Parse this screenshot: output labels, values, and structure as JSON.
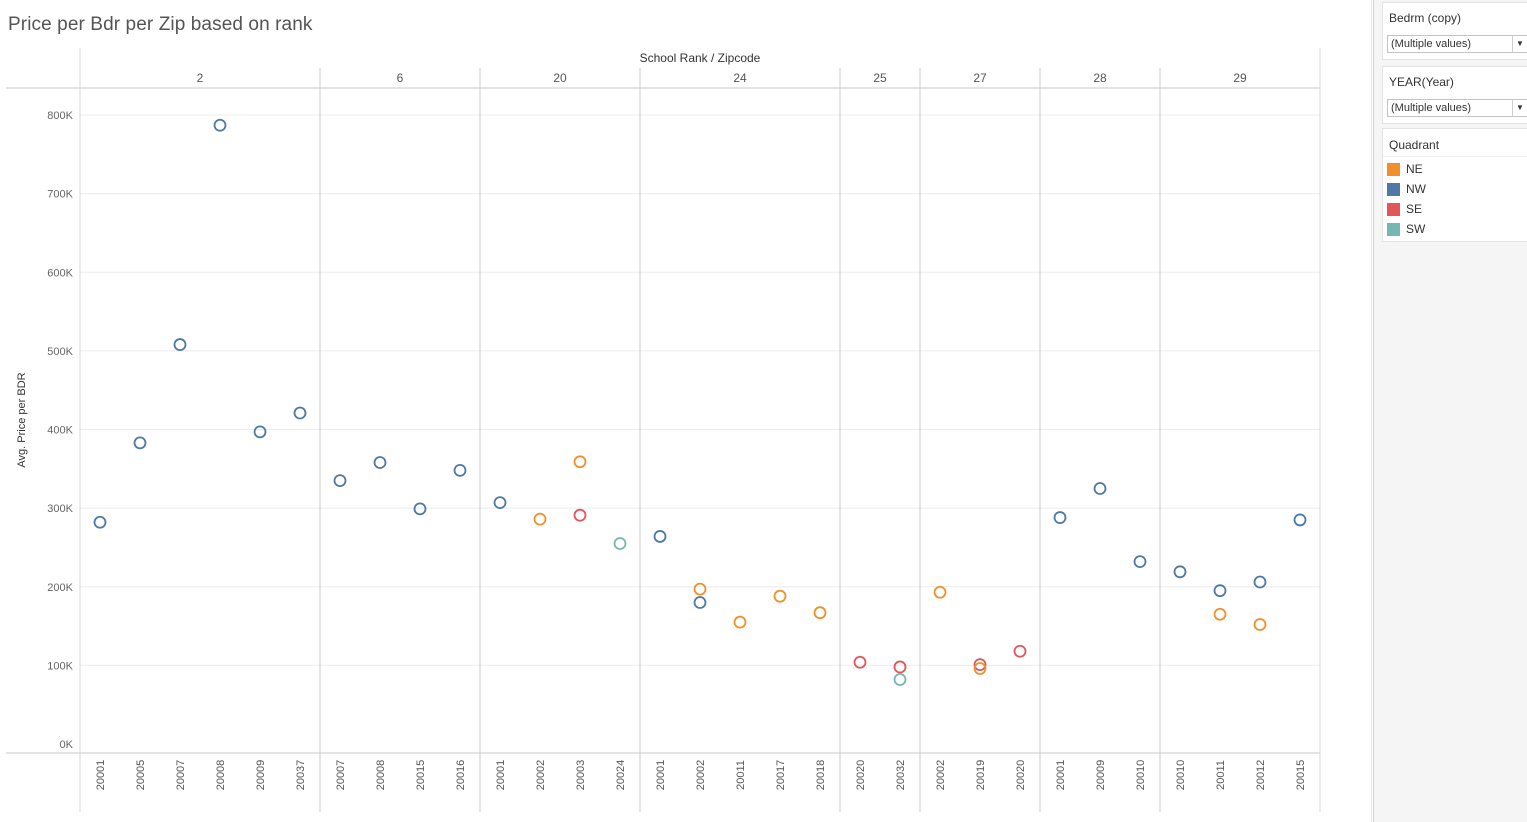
{
  "title": "Price per Bdr per Zip based on rank",
  "filters": [
    {
      "label": "Bedrm (copy)",
      "value": "(Multiple values)"
    },
    {
      "label": "YEAR(Year)",
      "value": "(Multiple values)"
    }
  ],
  "legend": {
    "title": "Quadrant",
    "items": [
      {
        "name": "NE",
        "color": "#f28e2b"
      },
      {
        "name": "NW",
        "color": "#4e79a7"
      },
      {
        "name": "SE",
        "color": "#e15759"
      },
      {
        "name": "SW",
        "color": "#76b7b2"
      }
    ]
  },
  "chart_data": {
    "type": "scatter",
    "title": "Price per Bdr per Zip based on rank",
    "column_header_title": "School Rank  /  Zipcode",
    "ylabel": "Avg. Price per BDR",
    "ylim": [
      0,
      800000
    ],
    "yticks": [
      {
        "value": 0,
        "label": "0K"
      },
      {
        "value": 100000,
        "label": "100K"
      },
      {
        "value": 200000,
        "label": "200K"
      },
      {
        "value": 300000,
        "label": "300K"
      },
      {
        "value": 400000,
        "label": "400K"
      },
      {
        "value": 500000,
        "label": "500K"
      },
      {
        "value": 600000,
        "label": "600K"
      },
      {
        "value": 700000,
        "label": "700K"
      },
      {
        "value": 800000,
        "label": "800K"
      }
    ],
    "grid": true,
    "legend_placement": "right",
    "groups": [
      {
        "rank": "2",
        "columns": [
          {
            "zip": "20001",
            "points": [
              {
                "q": "NW",
                "v": 282000
              }
            ]
          },
          {
            "zip": "20005",
            "points": [
              {
                "q": "NW",
                "v": 383000
              }
            ]
          },
          {
            "zip": "20007",
            "points": [
              {
                "q": "NW",
                "v": 508000
              }
            ]
          },
          {
            "zip": "20008",
            "points": [
              {
                "q": "NW",
                "v": 787000
              }
            ]
          },
          {
            "zip": "20009",
            "points": [
              {
                "q": "NW",
                "v": 397000
              }
            ]
          },
          {
            "zip": "20037",
            "points": [
              {
                "q": "NW",
                "v": 421000
              }
            ]
          }
        ]
      },
      {
        "rank": "6",
        "columns": [
          {
            "zip": "20007",
            "points": [
              {
                "q": "NW",
                "v": 335000
              }
            ]
          },
          {
            "zip": "20008",
            "points": [
              {
                "q": "NW",
                "v": 358000
              }
            ]
          },
          {
            "zip": "20015",
            "points": [
              {
                "q": "NW",
                "v": 299000
              }
            ]
          },
          {
            "zip": "20016",
            "points": [
              {
                "q": "NW",
                "v": 348000
              }
            ]
          }
        ]
      },
      {
        "rank": "20",
        "columns": [
          {
            "zip": "20001",
            "points": [
              {
                "q": "NW",
                "v": 307000
              }
            ]
          },
          {
            "zip": "20002",
            "points": [
              {
                "q": "NE",
                "v": 286000
              }
            ]
          },
          {
            "zip": "20003",
            "points": [
              {
                "q": "NE",
                "v": 359000
              },
              {
                "q": "SE",
                "v": 291000
              }
            ]
          },
          {
            "zip": "20024",
            "points": [
              {
                "q": "SW",
                "v": 255000
              }
            ]
          }
        ]
      },
      {
        "rank": "24",
        "columns": [
          {
            "zip": "20001",
            "points": [
              {
                "q": "NW",
                "v": 264000
              }
            ]
          },
          {
            "zip": "20002",
            "points": [
              {
                "q": "NE",
                "v": 197000
              },
              {
                "q": "NW",
                "v": 180000
              }
            ]
          },
          {
            "zip": "20011",
            "points": [
              {
                "q": "NE",
                "v": 155000
              }
            ]
          },
          {
            "zip": "20017",
            "points": [
              {
                "q": "NE",
                "v": 188000
              }
            ]
          },
          {
            "zip": "20018",
            "points": [
              {
                "q": "NE",
                "v": 167000
              }
            ]
          }
        ]
      },
      {
        "rank": "25",
        "columns": [
          {
            "zip": "20020",
            "points": [
              {
                "q": "SE",
                "v": 104000
              }
            ]
          },
          {
            "zip": "20032",
            "points": [
              {
                "q": "SE",
                "v": 98000
              },
              {
                "q": "SW",
                "v": 82000
              }
            ]
          }
        ]
      },
      {
        "rank": "27",
        "columns": [
          {
            "zip": "20002",
            "points": [
              {
                "q": "NE",
                "v": 193000
              }
            ]
          },
          {
            "zip": "20019",
            "points": [
              {
                "q": "SE",
                "v": 101000
              },
              {
                "q": "NE",
                "v": 96000
              }
            ]
          },
          {
            "zip": "20020",
            "points": [
              {
                "q": "SE",
                "v": 118000
              }
            ]
          }
        ]
      },
      {
        "rank": "28",
        "columns": [
          {
            "zip": "20001",
            "points": [
              {
                "q": "NW",
                "v": 288000
              }
            ]
          },
          {
            "zip": "20009",
            "points": [
              {
                "q": "NW",
                "v": 325000
              }
            ]
          },
          {
            "zip": "20010",
            "points": [
              {
                "q": "NW",
                "v": 232000
              }
            ]
          }
        ]
      },
      {
        "rank": "29",
        "columns": [
          {
            "zip": "20010",
            "points": [
              {
                "q": "NW",
                "v": 219000
              }
            ]
          },
          {
            "zip": "20011",
            "points": [
              {
                "q": "NW",
                "v": 195000
              },
              {
                "q": "NE",
                "v": 165000
              }
            ]
          },
          {
            "zip": "20012",
            "points": [
              {
                "q": "NW",
                "v": 206000
              },
              {
                "q": "NE",
                "v": 152000
              }
            ]
          },
          {
            "zip": "20015",
            "points": [
              {
                "q": "NW",
                "v": 285000
              }
            ]
          }
        ]
      }
    ]
  }
}
